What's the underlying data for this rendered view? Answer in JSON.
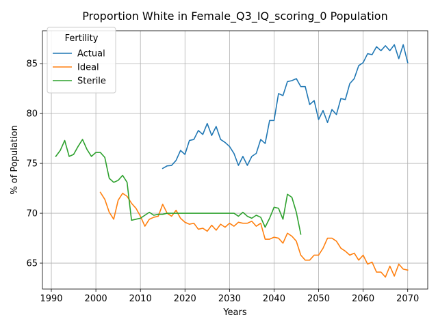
{
  "chart_data": {
    "type": "line",
    "title": "Proportion White in Female_Q3_IQ_scoring_0 Population",
    "xlabel": "Years",
    "ylabel": "% of Population",
    "xlim": [
      1988,
      2074.5
    ],
    "ylim": [
      62.4,
      88.3
    ],
    "xticks": [
      1990,
      2000,
      2010,
      2020,
      2030,
      2040,
      2050,
      2060,
      2070
    ],
    "yticks": [
      65,
      70,
      75,
      80,
      85
    ],
    "grid": true,
    "legend": {
      "title": "Fertility",
      "position": "top-left"
    },
    "series": [
      {
        "name": "Actual",
        "color": "#1f77b4",
        "x": [
          2015,
          2016,
          2017,
          2018,
          2019,
          2020,
          2021,
          2022,
          2023,
          2024,
          2025,
          2026,
          2027,
          2028,
          2029,
          2030,
          2031,
          2032,
          2033,
          2034,
          2035,
          2036,
          2037,
          2038,
          2039,
          2040,
          2041,
          2042,
          2043,
          2044,
          2045,
          2046,
          2047,
          2048,
          2049,
          2050,
          2051,
          2052,
          2053,
          2054,
          2055,
          2056,
          2057,
          2058,
          2059,
          2060,
          2061,
          2062,
          2063,
          2064,
          2065,
          2066,
          2067,
          2068,
          2069,
          2070
        ],
        "y": [
          74.5,
          74.75,
          74.8,
          75.3,
          76.3,
          75.9,
          77.3,
          77.4,
          78.3,
          77.9,
          79.0,
          77.8,
          78.7,
          77.4,
          77.1,
          76.7,
          76.0,
          74.8,
          75.7,
          74.8,
          75.7,
          76.0,
          77.4,
          77.0,
          79.3,
          79.3,
          82.0,
          81.8,
          83.2,
          83.3,
          83.5,
          82.7,
          82.7,
          80.9,
          81.3,
          79.4,
          80.3,
          79.1,
          80.4,
          79.9,
          81.5,
          81.4,
          83.0,
          83.5,
          84.8,
          85.1,
          86.0,
          85.9,
          86.7,
          86.3,
          86.8,
          86.3,
          86.9,
          85.5,
          86.9,
          85.1
        ]
      },
      {
        "name": "Ideal",
        "color": "#ff7f0e",
        "x": [
          2001,
          2002,
          2003,
          2004,
          2005,
          2006,
          2007,
          2008,
          2009,
          2010,
          2011,
          2012,
          2013,
          2014,
          2015,
          2016,
          2017,
          2018,
          2019,
          2020,
          2021,
          2022,
          2023,
          2024,
          2025,
          2026,
          2027,
          2028,
          2029,
          2030,
          2031,
          2032,
          2033,
          2034,
          2035,
          2036,
          2037,
          2038,
          2039,
          2040,
          2041,
          2042,
          2043,
          2044,
          2045,
          2046,
          2047,
          2048,
          2049,
          2050,
          2051,
          2052,
          2053,
          2054,
          2055,
          2056,
          2057,
          2058,
          2059,
          2060,
          2061,
          2062,
          2063,
          2064,
          2065,
          2066,
          2067,
          2068,
          2069,
          2070
        ],
        "y": [
          72.1,
          71.4,
          70.1,
          69.4,
          71.3,
          72.0,
          71.7,
          71.0,
          70.5,
          69.7,
          68.7,
          69.4,
          69.6,
          69.7,
          70.9,
          70.0,
          69.7,
          70.3,
          69.5,
          69.1,
          68.9,
          69.0,
          68.4,
          68.5,
          68.2,
          68.8,
          68.3,
          68.9,
          68.6,
          69.0,
          68.7,
          69.1,
          69.0,
          69.0,
          69.2,
          68.7,
          69.0,
          67.4,
          67.4,
          67.6,
          67.5,
          67.0,
          68.0,
          67.7,
          67.2,
          65.8,
          65.3,
          65.3,
          65.8,
          65.8,
          66.5,
          67.5,
          67.5,
          67.2,
          66.5,
          66.2,
          65.8,
          66.0,
          65.3,
          65.8,
          64.9,
          65.1,
          64.1,
          64.1,
          63.6,
          64.7,
          63.7,
          64.9,
          64.4,
          64.3
        ]
      },
      {
        "name": "Sterile",
        "color": "#2ca02c",
        "x": [
          1991,
          1992,
          1993,
          1994,
          1995,
          1996,
          1997,
          1998,
          1999,
          2000,
          2001,
          2002,
          2003,
          2004,
          2005,
          2006,
          2007,
          2008,
          2009,
          2010,
          2011,
          2012,
          2013,
          2014,
          2015,
          2016,
          2017,
          2018,
          2019,
          2020,
          2021,
          2022,
          2023,
          2024,
          2025,
          2026,
          2027,
          2028,
          2029,
          2030,
          2031,
          2032,
          2033,
          2034,
          2035,
          2036,
          2037,
          2038,
          2039,
          2040,
          2041,
          2042,
          2043,
          2044,
          2045,
          2046
        ],
        "y": [
          75.7,
          76.3,
          77.3,
          75.7,
          75.9,
          76.7,
          77.4,
          76.4,
          75.7,
          76.1,
          76.1,
          75.6,
          73.5,
          73.1,
          73.3,
          73.8,
          73.1,
          69.3,
          69.4,
          69.5,
          69.8,
          70.1,
          69.8,
          69.9,
          69.9,
          70.0,
          70.0,
          70.0,
          70.0,
          70.0,
          70.0,
          70.0,
          70.0,
          70.0,
          70.0,
          70.0,
          70.0,
          70.0,
          70.0,
          70.0,
          70.0,
          69.7,
          70.1,
          69.7,
          69.5,
          69.8,
          69.6,
          68.6,
          69.5,
          70.6,
          70.5,
          69.4,
          71.9,
          71.6,
          70.1,
          67.9
        ]
      }
    ]
  }
}
